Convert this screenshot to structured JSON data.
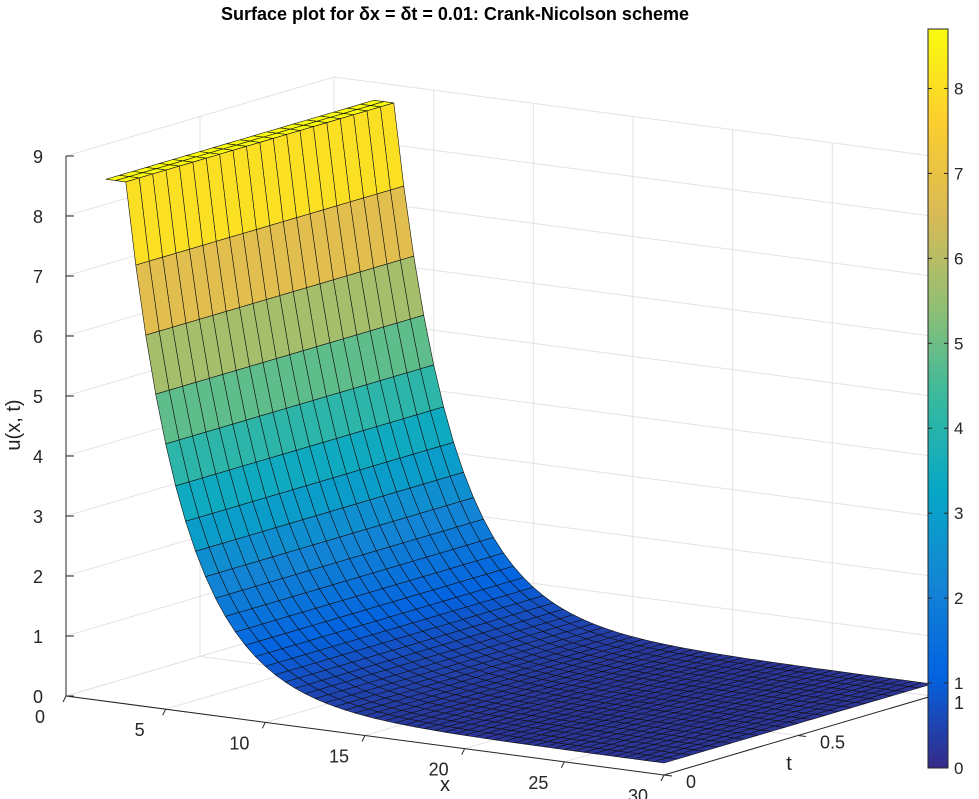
{
  "chart_data": {
    "type": "surface",
    "title": "Surface plot for δx = δt = 0.01: Crank-Nicolson scheme",
    "xlabel": "x",
    "ylabel": "t",
    "zlabel": "u(x, t)",
    "xlim": [
      0,
      30
    ],
    "ylim": [
      0,
      1
    ],
    "zlim": [
      0,
      9
    ],
    "x_ticks": [
      0,
      5,
      10,
      15,
      20,
      25,
      30
    ],
    "y_ticks": [
      0,
      0.5,
      1
    ],
    "z_ticks": [
      0,
      1,
      2,
      3,
      4,
      5,
      6,
      7,
      8,
      9
    ],
    "colormap": "parula",
    "colorbar": {
      "min": 0,
      "max": 8.7,
      "ticks": [
        0,
        1,
        2,
        3,
        4,
        5,
        6,
        7,
        8
      ]
    },
    "grid": true,
    "surface": {
      "x_min": 2,
      "x_max": 30,
      "t_min": 0,
      "t_max": 1,
      "u_max": 8.7,
      "u_min": 0.2,
      "decay_rate": 0.35,
      "decay_start_x": 3
    }
  }
}
